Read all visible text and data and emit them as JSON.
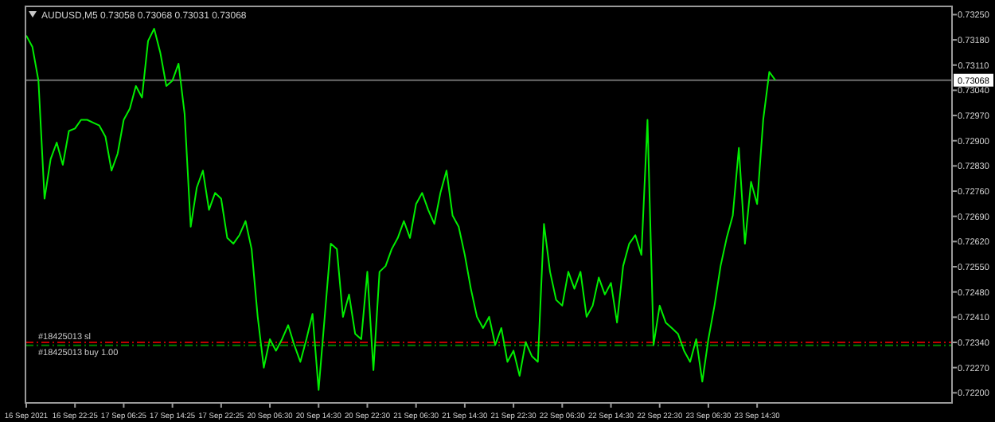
{
  "chart_data": {
    "type": "line",
    "title": "AUDUSD,M5  0.73058 0.73068 0.73031 0.73068",
    "categories": [
      "16 Sep 2021",
      null,
      null,
      null,
      null,
      null,
      null,
      null,
      "16 Sep 22:25",
      null,
      null,
      null,
      null,
      null,
      null,
      null,
      "17 Sep 06:25",
      null,
      null,
      null,
      null,
      null,
      null,
      null,
      "17 Sep 14:25",
      null,
      null,
      null,
      null,
      null,
      null,
      null,
      "17 Sep 22:25",
      null,
      null,
      null,
      null,
      null,
      null,
      null,
      "20 Sep 06:30",
      null,
      null,
      null,
      null,
      null,
      null,
      null,
      "20 Sep 14:30",
      null,
      null,
      null,
      null,
      null,
      null,
      null,
      "20 Sep 22:30",
      null,
      null,
      null,
      null,
      null,
      null,
      null,
      "21 Sep 06:30",
      null,
      null,
      null,
      null,
      null,
      null,
      null,
      "21 Sep 14:30",
      null,
      null,
      null,
      null,
      null,
      null,
      null,
      "21 Sep 22:30",
      null,
      null,
      null,
      null,
      null,
      null,
      null,
      "22 Sep 06:30",
      null,
      null,
      null,
      null,
      null,
      null,
      null,
      "22 Sep 14:30",
      null,
      null,
      null,
      null,
      null,
      null,
      null,
      "22 Sep 22:30",
      null,
      null,
      null,
      null,
      null,
      null,
      null,
      "23 Sep 06:30",
      null,
      null,
      null,
      null,
      null,
      null,
      null,
      "23 Sep 14:30",
      null,
      null,
      null,
      null,
      null,
      null,
      null,
      null,
      null,
      null,
      null,
      null,
      null,
      null,
      null,
      null,
      null,
      null,
      null,
      null,
      null,
      null,
      null,
      null,
      null,
      null,
      null,
      null,
      null,
      null,
      null,
      null
    ],
    "ylim": [
      0.72172,
      0.73273
    ],
    "yticks": [
      {
        "value": 0.7325,
        "label": "0.73250"
      },
      {
        "value": 0.7318,
        "label": "0.73180"
      },
      {
        "value": 0.7311,
        "label": "0.73110"
      },
      {
        "value": 0.7304,
        "label": "0.73040"
      },
      {
        "value": 0.7297,
        "label": "0.72970"
      },
      {
        "value": 0.729,
        "label": "0.72900"
      },
      {
        "value": 0.7283,
        "label": "0.72830"
      },
      {
        "value": 0.7276,
        "label": "0.72760"
      },
      {
        "value": 0.7269,
        "label": "0.72690"
      },
      {
        "value": 0.7262,
        "label": "0.72620"
      },
      {
        "value": 0.7255,
        "label": "0.72550"
      },
      {
        "value": 0.7248,
        "label": "0.72480"
      },
      {
        "value": 0.7241,
        "label": "0.72410"
      },
      {
        "value": 0.7234,
        "label": "0.72340"
      },
      {
        "value": 0.7227,
        "label": "0.72270"
      },
      {
        "value": 0.722,
        "label": "0.72200"
      }
    ],
    "ref_lines": [
      {
        "axis": "y",
        "value": 0.73068,
        "label": "0.73068",
        "color": "#6e6e6e",
        "line_style": "solid"
      },
      {
        "axis": "y",
        "value": 0.7234,
        "label": "#18425013 sl",
        "color": "#c00000",
        "line_style": "dashed"
      },
      {
        "axis": "y",
        "value": 0.72332,
        "label": "#18425013 buy 1.00",
        "color": "#008000",
        "line_style": "dashed"
      }
    ],
    "series": [
      {
        "color": "#00ee00",
        "values": [
          0.73192,
          0.73161,
          0.73067,
          0.72739,
          0.72849,
          0.72895,
          0.72833,
          0.72927,
          0.72934,
          0.72958,
          0.72958,
          0.7295,
          0.72942,
          0.72911,
          0.72817,
          0.72864,
          0.72958,
          0.72989,
          0.73052,
          0.7302,
          0.73177,
          0.73211,
          0.73145,
          0.73052,
          0.73067,
          0.73114,
          0.72974,
          0.72661,
          0.7277,
          0.72817,
          0.72708,
          0.72755,
          0.72739,
          0.7263,
          0.72614,
          0.72638,
          0.72677,
          0.72599,
          0.72411,
          0.7227,
          0.72349,
          0.72317,
          0.72349,
          0.72388,
          0.72333,
          0.72286,
          0.72349,
          0.72419,
          0.72208,
          0.72411,
          0.72614,
          0.72599,
          0.72411,
          0.72473,
          0.72364,
          0.72349,
          0.72536,
          0.72263,
          0.72536,
          0.72552,
          0.72599,
          0.7263,
          0.72677,
          0.7263,
          0.72724,
          0.72755,
          0.72708,
          0.72669,
          0.72755,
          0.72817,
          0.72692,
          0.72661,
          0.72583,
          0.72489,
          0.72411,
          0.7238,
          0.72411,
          0.72333,
          0.7238,
          0.72286,
          0.72317,
          0.72247,
          0.72341,
          0.72302,
          0.72286,
          0.72669,
          0.72536,
          0.72458,
          0.72442,
          0.72536,
          0.72489,
          0.72536,
          0.72411,
          0.72442,
          0.7252,
          0.72473,
          0.72505,
          0.72395,
          0.72552,
          0.72614,
          0.72638,
          0.72583,
          0.72958,
          0.72333,
          0.72442,
          0.72395,
          0.7238,
          0.72364,
          0.72317,
          0.72286,
          0.72349,
          0.72231,
          0.72349,
          0.72442,
          0.72552,
          0.7263,
          0.72692,
          0.7288,
          0.72614,
          0.72786,
          0.72724,
          0.72958,
          0.73091,
          0.73068,
          null,
          null,
          null,
          null,
          null,
          null,
          null,
          null,
          null,
          null,
          null,
          null,
          null,
          null,
          null,
          null,
          null,
          null,
          null,
          null,
          null,
          null,
          null,
          null,
          null,
          null,
          null,
          null,
          null
        ]
      }
    ]
  }
}
